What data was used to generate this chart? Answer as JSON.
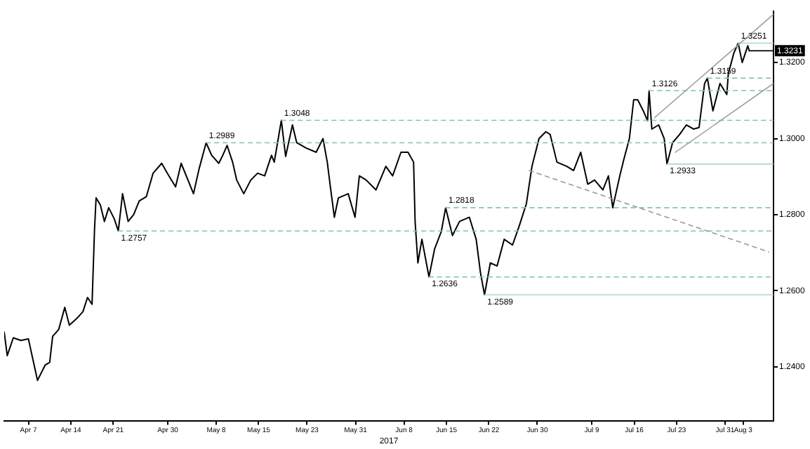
{
  "chart_data": {
    "type": "line",
    "xlabel": "2017",
    "marker": "none",
    "xlim": [
      "2017-04-03",
      "2017-08-08"
    ],
    "ylim": [
      1.2258,
      1.3335
    ],
    "xticks": [
      {
        "value": "2017-04-07",
        "label": "Apr 7"
      },
      {
        "value": "2017-04-14",
        "label": "Apr 14"
      },
      {
        "value": "2017-04-21",
        "label": "Apr 21"
      },
      {
        "value": "2017-04-30",
        "label": "Apr 30"
      },
      {
        "value": "2017-05-08",
        "label": "May 8"
      },
      {
        "value": "2017-05-15",
        "label": "May 15"
      },
      {
        "value": "2017-05-23",
        "label": "May 23"
      },
      {
        "value": "2017-05-31",
        "label": "May 31"
      },
      {
        "value": "2017-06-08",
        "label": "Jun 8"
      },
      {
        "value": "2017-06-15",
        "label": "Jun 15"
      },
      {
        "value": "2017-06-22",
        "label": "Jun 22"
      },
      {
        "value": "2017-06-30",
        "label": "Jun 30"
      },
      {
        "value": "2017-07-09",
        "label": "Jul 9"
      },
      {
        "value": "2017-07-16",
        "label": "Jul 16"
      },
      {
        "value": "2017-07-23",
        "label": "Jul 23"
      },
      {
        "value": "2017-07-31",
        "label": "Jul 31"
      },
      {
        "value": "2017-08-03",
        "label": "Aug 3"
      }
    ],
    "yticks": [
      {
        "value": 1.24,
        "label": "1.2400"
      },
      {
        "value": 1.26,
        "label": "1.2600"
      },
      {
        "value": 1.28,
        "label": "1.2800"
      },
      {
        "value": 1.3,
        "label": "1.3000"
      },
      {
        "value": 1.32,
        "label": "1.3200"
      }
    ],
    "x": [
      "2017-04-03",
      "2017-04-03T12:00",
      "2017-04-04T12:00",
      "2017-04-05T18:00",
      "2017-04-07",
      "2017-04-07T12:00",
      "2017-04-08T12:00",
      "2017-04-09T18:00",
      "2017-04-10T12:00",
      "2017-04-11",
      "2017-04-12",
      "2017-04-13",
      "2017-04-13T18:00",
      "2017-04-15",
      "2017-04-16",
      "2017-04-16T18:00",
      "2017-04-17T12:00",
      "2017-04-17T22:00",
      "2017-04-18T04:00",
      "2017-04-18T21:00",
      "2017-04-19T13:00",
      "2017-04-20T06:00",
      "2017-04-21T04:00",
      "2017-04-21T20:00",
      "2017-04-22T13:00",
      "2017-04-23T11:00",
      "2017-04-24T09:00",
      "2017-04-25T07:00",
      "2017-04-26T11:00",
      "2017-04-27T14:00",
      "2017-04-29",
      "2017-04-29T22:00",
      "2017-05-01T07:00",
      "2017-05-02T05:00",
      "2017-05-03T08:00",
      "2017-05-04T06:00",
      "2017-05-05T04:00",
      "2017-05-06T08:00",
      "2017-05-07T06:00",
      "2017-05-08T10:00",
      "2017-05-09T02:00",
      "2017-05-09T19:00",
      "2017-05-10T17:00",
      "2017-05-11T09:00",
      "2017-05-12T13:00",
      "2017-05-13T17:00",
      "2017-05-14T20:00",
      "2017-05-16",
      "2017-05-17T03:00",
      "2017-05-17T14:00",
      "2017-05-18T18:00",
      "2017-05-19T11:00",
      "2017-05-20T14:00",
      "2017-05-21T07:00",
      "2017-05-22T21:00",
      "2017-05-24T12:00",
      "2017-05-25T15:00",
      "2017-05-26T08:00",
      "2017-05-26T19:00",
      "2017-05-27T12:00",
      "2017-05-28T04:00",
      "2017-05-29T19:00",
      "2017-05-30T22:00",
      "2017-05-31T15:00",
      "2017-06-01T18:00",
      "2017-06-03T09:00",
      "2017-06-05",
      "2017-06-06T03:00",
      "2017-06-07T12:00",
      "2017-06-08T16:00",
      "2017-06-09T14:00",
      "2017-06-09T20:00",
      "2017-06-10T07:00",
      "2017-06-10T23:00",
      "2017-06-12T03:00",
      "2017-06-13T01:00",
      "2017-06-14T04:00",
      "2017-06-14T21:00",
      "2017-06-16",
      "2017-06-17T04:00",
      "2017-06-18T19:00",
      "2017-06-19T22:00",
      "2017-06-20T15:00",
      "2017-06-21T07:00",
      "2017-06-22T06:00",
      "2017-06-23T09:00",
      "2017-06-24T13:00",
      "2017-06-25T22:00",
      "2017-06-27T01:00",
      "2017-06-28T05:00",
      "2017-06-29T03:00",
      "2017-06-30T07:00",
      "2017-07-01T10:00",
      "2017-07-02T03:00",
      "2017-07-03T06:00",
      "2017-07-04T21:00",
      "2017-07-06",
      "2017-07-07T04:00",
      "2017-07-08T08:00",
      "2017-07-09T11:00",
      "2017-07-10T20:00",
      "2017-07-11T18:00",
      "2017-07-12T11:00",
      "2017-07-13T15:00",
      "2017-07-14T07:00",
      "2017-07-15T05:00",
      "2017-07-15T22:00",
      "2017-07-16T14:00",
      "2017-07-17T12:00",
      "2017-07-18T05:00",
      "2017-07-18T11:00",
      "2017-07-18T22:00",
      "2017-07-20T01:00",
      "2017-07-20T23:00",
      "2017-07-21T10:00",
      "2017-07-22T08:00",
      "2017-07-23T12:00",
      "2017-07-24T15:00",
      "2017-07-25T19:00",
      "2017-07-26T17:00",
      "2017-07-27T15:00",
      "2017-07-28T02:00",
      "2017-07-29",
      "2017-07-30T04:00",
      "2017-07-31T07:00",
      "2017-07-31T13:00",
      "2017-08-01T11:00",
      "2017-08-02T04:00",
      "2017-08-02T20:00",
      "2017-08-03T18:00",
      "2017-08-04"
    ],
    "series": [
      {
        "type": "line",
        "color": "#000000",
        "values": [
          1.2491,
          1.2429,
          1.2476,
          1.2469,
          1.2473,
          1.2436,
          1.2364,
          1.2404,
          1.2411,
          1.248,
          1.2498,
          1.2556,
          1.2509,
          1.2527,
          1.2545,
          1.2582,
          1.2564,
          1.2764,
          1.2844,
          1.2825,
          1.2782,
          1.2818,
          1.2789,
          1.2757,
          1.2855,
          1.2782,
          1.28,
          1.2836,
          1.2847,
          1.2909,
          1.2935,
          1.2909,
          1.2873,
          1.2935,
          1.2891,
          1.2855,
          1.292,
          1.2989,
          1.2956,
          1.2935,
          1.2956,
          1.2982,
          1.2938,
          1.2891,
          1.2855,
          1.2891,
          1.2909,
          1.2902,
          1.2956,
          1.2938,
          1.3048,
          1.2953,
          1.3036,
          1.2989,
          1.2975,
          1.2964,
          1.3,
          1.2938,
          1.288,
          1.2793,
          1.2844,
          1.2855,
          1.2793,
          1.2902,
          1.2891,
          1.2865,
          1.2927,
          1.2902,
          1.2964,
          1.2964,
          1.2938,
          1.2782,
          1.2673,
          1.2735,
          1.2636,
          1.2709,
          1.2756,
          1.2818,
          1.2745,
          1.2782,
          1.2793,
          1.2735,
          1.2647,
          1.2589,
          1.2673,
          1.2665,
          1.2735,
          1.272,
          1.2771,
          1.2829,
          1.2927,
          1.3,
          1.3018,
          1.3011,
          1.2938,
          1.2927,
          1.2916,
          1.2964,
          1.288,
          1.2891,
          1.2865,
          1.2902,
          1.2818,
          1.2902,
          1.2945,
          1.3,
          1.3102,
          1.3102,
          1.3073,
          1.3047,
          1.3126,
          1.3025,
          1.3036,
          1.3,
          1.2933,
          1.2989,
          1.3011,
          1.3036,
          1.3025,
          1.3029,
          1.3145,
          1.3159,
          1.3073,
          1.3145,
          1.3116,
          1.3171,
          1.3225,
          1.3251,
          1.32,
          1.3244,
          1.3231
        ]
      },
      {
        "type": "line",
        "color": "#7cc6b0",
        "line_style": "dashed",
        "x": [
          "2017-04-21T20:00",
          "2017-08-08"
        ],
        "values": [
          1.2757,
          1.2757
        ]
      },
      {
        "type": "line",
        "color": "#7cc6b0",
        "line_style": "dashed",
        "x": [
          "2017-05-06T08:00",
          "2017-08-08"
        ],
        "values": [
          1.2989,
          1.2989
        ]
      },
      {
        "type": "line",
        "color": "#7cc6b0",
        "line_style": "dashed",
        "x": [
          "2017-05-18T18:00",
          "2017-08-08"
        ],
        "values": [
          1.3048,
          1.3048
        ]
      },
      {
        "type": "line",
        "color": "#7cc6b0",
        "line_style": "dashed",
        "x": [
          "2017-06-12T03:00",
          "2017-08-08"
        ],
        "values": [
          1.2636,
          1.2636
        ]
      },
      {
        "type": "line",
        "color": "#7cc6b0",
        "line_style": "dashed",
        "x": [
          "2017-06-14T21:00",
          "2017-08-08"
        ],
        "values": [
          1.2818,
          1.2818
        ]
      },
      {
        "type": "line",
        "color": "#a8dcc4",
        "line_style": "solid",
        "x": [
          "2017-06-21T07:00",
          "2017-08-08"
        ],
        "values": [
          1.2589,
          1.2589
        ]
      },
      {
        "type": "line",
        "color": "#7cc6b0",
        "line_style": "dashed",
        "x": [
          "2017-07-18T11:00",
          "2017-08-08"
        ],
        "values": [
          1.3126,
          1.3126
        ]
      },
      {
        "type": "line",
        "color": "#a8dcc4",
        "line_style": "solid",
        "x": [
          "2017-07-21T10:00",
          "2017-08-08"
        ],
        "values": [
          1.2933,
          1.2933
        ]
      },
      {
        "type": "line",
        "color": "#7cc6b0",
        "line_style": "dashed",
        "x": [
          "2017-07-28T02:00",
          "2017-08-08"
        ],
        "values": [
          1.3159,
          1.3159
        ]
      },
      {
        "type": "line",
        "color": "#a8dcc4",
        "line_style": "solid",
        "x": [
          "2017-08-02T04:00",
          "2017-08-08"
        ],
        "values": [
          1.3251,
          1.3251
        ]
      },
      {
        "type": "line",
        "color": "#a0a0a0",
        "line_style": "solid",
        "x": [
          "2017-07-19T09:00",
          "2017-08-08"
        ],
        "values": [
          1.3055,
          1.3327
        ]
      },
      {
        "type": "line",
        "color": "#a0a0a0",
        "line_style": "solid",
        "x": [
          "2017-07-22T19:00",
          "2017-08-08"
        ],
        "values": [
          1.2964,
          1.3145
        ]
      },
      {
        "type": "line",
        "color": "#9a9a9a",
        "line_style": "dashed",
        "x": [
          "2017-06-28T16:00",
          "2017-08-07T05:00"
        ],
        "values": [
          1.2916,
          1.2702
        ]
      }
    ],
    "annotations": [
      {
        "text": "1.2757",
        "x": "2017-04-21T20:00",
        "y": 1.2757
      },
      {
        "text": "1.2989",
        "x": "2017-05-06T08:00",
        "y": 1.2989
      },
      {
        "text": "1.3048",
        "x": "2017-05-18T18:00",
        "y": 1.3048
      },
      {
        "text": "1.2636",
        "x": "2017-06-12T03:00",
        "y": 1.2636
      },
      {
        "text": "1.2818",
        "x": "2017-06-14T21:00",
        "y": 1.2818
      },
      {
        "text": "1.2589",
        "x": "2017-06-21T07:00",
        "y": 1.2589
      },
      {
        "text": "1.3126",
        "x": "2017-07-18T11:00",
        "y": 1.3126
      },
      {
        "text": "1.2933",
        "x": "2017-07-21T10:00",
        "y": 1.2933
      },
      {
        "text": "1.3159",
        "x": "2017-07-28T02:00",
        "y": 1.3159
      },
      {
        "text": "1.3251",
        "x": "2017-08-02T04:00",
        "y": 1.3251
      }
    ],
    "ref_lines": [
      {
        "axis": "y",
        "value": 1.3231,
        "label": "1.3231"
      }
    ]
  }
}
